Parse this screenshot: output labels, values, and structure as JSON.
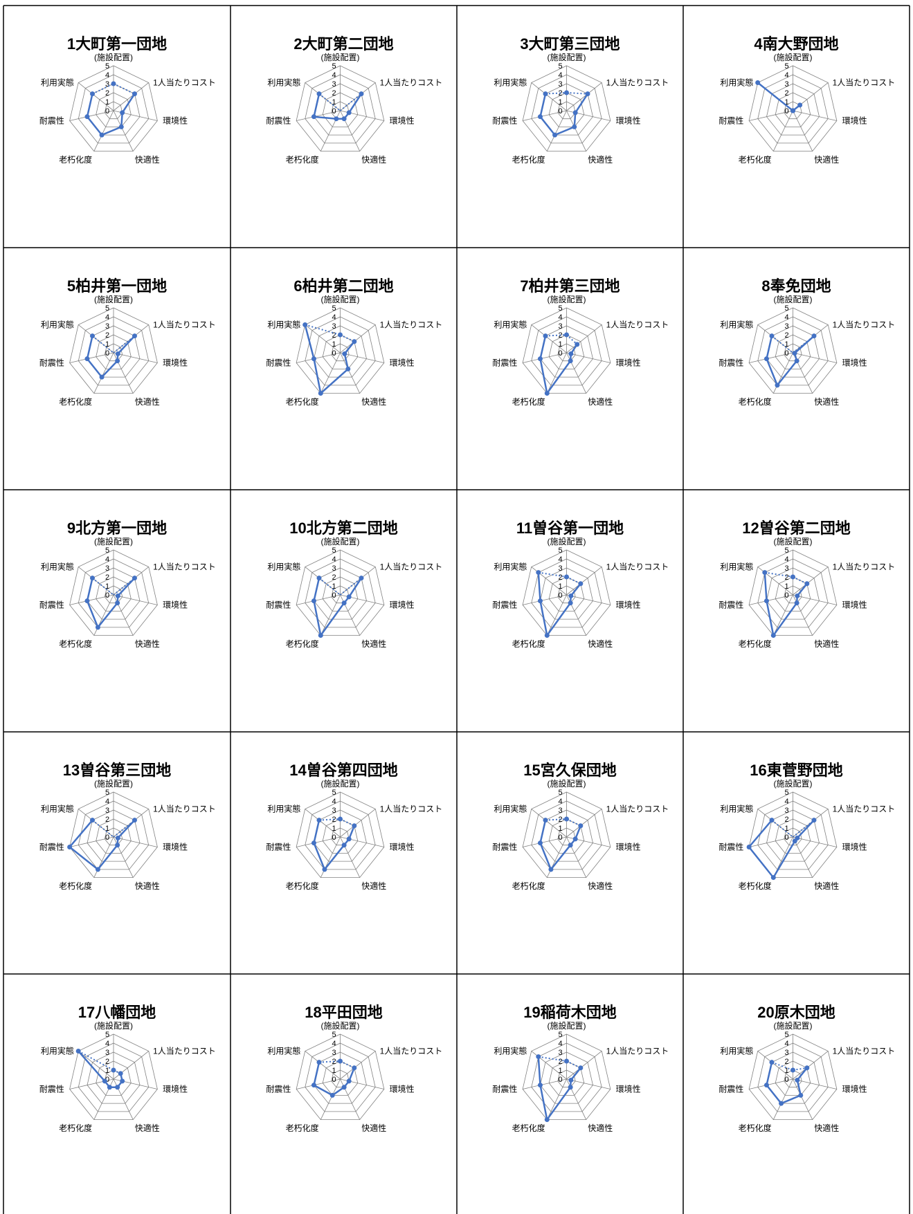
{
  "chart_data": [
    {
      "type": "radar",
      "title": "1大町第一団地",
      "axes": [
        "(施設配置)",
        "1人当たりコスト",
        "環境性",
        "快適性",
        "老朽化度",
        "耐震性",
        "利用実態"
      ],
      "ylim": [
        0,
        5
      ],
      "ticks": [
        0,
        1,
        2,
        3,
        4,
        5
      ],
      "series": [
        {
          "values": [
            3,
            3,
            1,
            2,
            3,
            3,
            3
          ]
        }
      ]
    },
    {
      "type": "radar",
      "title": "2大町第二団地",
      "axes": [
        "(施設配置)",
        "1人当たりコスト",
        "環境性",
        "快適性",
        "老朽化度",
        "耐震性",
        "利用実態"
      ],
      "ylim": [
        0,
        5
      ],
      "ticks": [
        0,
        1,
        2,
        3,
        4,
        5
      ],
      "series": [
        {
          "values": [
            0,
            3,
            1,
            1,
            1,
            3,
            3
          ]
        }
      ]
    },
    {
      "type": "radar",
      "title": "3大町第三団地",
      "axes": [
        "(施設配置)",
        "1人当たりコスト",
        "環境性",
        "快適性",
        "老朽化度",
        "耐震性",
        "利用実態"
      ],
      "ylim": [
        0,
        5
      ],
      "ticks": [
        0,
        1,
        2,
        3,
        4,
        5
      ],
      "series": [
        {
          "values": [
            2,
            3,
            1,
            2,
            3,
            3,
            3
          ]
        }
      ]
    },
    {
      "type": "radar",
      "title": "4南大野団地",
      "axes": [
        "(施設配置)",
        "1人当たりコスト",
        "環境性",
        "快適性",
        "老朽化度",
        "耐震性",
        "利用実態"
      ],
      "ylim": [
        0,
        5
      ],
      "ticks": [
        0,
        1,
        2,
        3,
        4,
        5
      ],
      "series": [
        {
          "values": [
            0,
            1,
            0,
            0,
            0,
            0,
            5
          ]
        }
      ]
    },
    {
      "type": "radar",
      "title": "5柏井第一団地",
      "axes": [
        "(施設配置)",
        "1人当たりコスト",
        "環境性",
        "快適性",
        "老朽化度",
        "耐震性",
        "利用実態"
      ],
      "ylim": [
        0,
        5
      ],
      "ticks": [
        0,
        1,
        2,
        3,
        4,
        5
      ],
      "series": [
        {
          "values": [
            0,
            3,
            0.5,
            1,
            3,
            3,
            3
          ]
        }
      ]
    },
    {
      "type": "radar",
      "title": "6柏井第二団地",
      "axes": [
        "(施設配置)",
        "1人当たりコスト",
        "環境性",
        "快適性",
        "老朽化度",
        "耐震性",
        "利用実態"
      ],
      "ylim": [
        0,
        5
      ],
      "ticks": [
        0,
        1,
        2,
        3,
        4,
        5
      ],
      "series": [
        {
          "values": [
            2,
            2,
            0.5,
            2,
            5,
            3,
            5
          ]
        }
      ]
    },
    {
      "type": "radar",
      "title": "7柏井第三団地",
      "axes": [
        "(施設配置)",
        "1人当たりコスト",
        "環境性",
        "快適性",
        "老朽化度",
        "耐震性",
        "利用実態"
      ],
      "ylim": [
        0,
        5
      ],
      "ticks": [
        0,
        1,
        2,
        3,
        4,
        5
      ],
      "series": [
        {
          "values": [
            2,
            1.5,
            0.5,
            1,
            5,
            3,
            3
          ]
        }
      ]
    },
    {
      "type": "radar",
      "title": "8奉免団地",
      "axes": [
        "(施設配置)",
        "1人当たりコスト",
        "環境性",
        "快適性",
        "老朽化度",
        "耐震性",
        "利用実態"
      ],
      "ylim": [
        0,
        5
      ],
      "ticks": [
        0,
        1,
        2,
        3,
        4,
        5
      ],
      "series": [
        {
          "values": [
            0,
            3,
            0.2,
            1,
            4,
            3,
            3
          ]
        }
      ]
    },
    {
      "type": "radar",
      "title": "9北方第一団地",
      "axes": [
        "(施設配置)",
        "1人当たりコスト",
        "環境性",
        "快適性",
        "老朽化度",
        "耐震性",
        "利用実態"
      ],
      "ylim": [
        0,
        5
      ],
      "ticks": [
        0,
        1,
        2,
        3,
        4,
        5
      ],
      "series": [
        {
          "values": [
            0,
            3,
            0.5,
            1,
            4,
            3,
            3
          ]
        }
      ]
    },
    {
      "type": "radar",
      "title": "10北方第二団地",
      "axes": [
        "(施設配置)",
        "1人当たりコスト",
        "環境性",
        "快適性",
        "老朽化度",
        "耐震性",
        "利用実態"
      ],
      "ylim": [
        0,
        5
      ],
      "ticks": [
        0,
        1,
        2,
        3,
        4,
        5
      ],
      "series": [
        {
          "values": [
            0,
            3,
            1,
            1,
            5,
            3,
            3
          ]
        }
      ]
    },
    {
      "type": "radar",
      "title": "11曽谷第一団地",
      "axes": [
        "(施設配置)",
        "1人当たりコスト",
        "環境性",
        "快適性",
        "老朽化度",
        "耐震性",
        "利用実態"
      ],
      "ylim": [
        0,
        5
      ],
      "ticks": [
        0,
        1,
        2,
        3,
        4,
        5
      ],
      "series": [
        {
          "values": [
            2,
            2,
            0.5,
            1,
            5,
            3,
            4
          ]
        }
      ]
    },
    {
      "type": "radar",
      "title": "12曽谷第二団地",
      "axes": [
        "(施設配置)",
        "1人当たりコスト",
        "環境性",
        "快適性",
        "老朽化度",
        "耐震性",
        "利用実態"
      ],
      "ylim": [
        0,
        5
      ],
      "ticks": [
        0,
        1,
        2,
        3,
        4,
        5
      ],
      "series": [
        {
          "values": [
            2,
            2,
            0.5,
            1,
            5,
            3,
            4
          ]
        }
      ]
    },
    {
      "type": "radar",
      "title": "13曽谷第三団地",
      "axes": [
        "(施設配置)",
        "1人当たりコスト",
        "環境性",
        "快適性",
        "老朽化度",
        "耐震性",
        "利用実態"
      ],
      "ylim": [
        0,
        5
      ],
      "ticks": [
        0,
        1,
        2,
        3,
        4,
        5
      ],
      "series": [
        {
          "values": [
            0,
            3,
            0.5,
            1,
            4,
            5,
            3
          ]
        }
      ]
    },
    {
      "type": "radar",
      "title": "14曽谷第四団地",
      "axes": [
        "(施設配置)",
        "1人当たりコスト",
        "環境性",
        "快適性",
        "老朽化度",
        "耐震性",
        "利用実態"
      ],
      "ylim": [
        0,
        5
      ],
      "ticks": [
        0,
        1,
        2,
        3,
        4,
        5
      ],
      "series": [
        {
          "values": [
            2,
            2,
            1,
            1,
            4,
            3,
            3
          ]
        }
      ]
    },
    {
      "type": "radar",
      "title": "15宮久保団地",
      "axes": [
        "(施設配置)",
        "1人当たりコスト",
        "環境性",
        "快適性",
        "老朽化度",
        "耐震性",
        "利用実態"
      ],
      "ylim": [
        0,
        5
      ],
      "ticks": [
        0,
        1,
        2,
        3,
        4,
        5
      ],
      "series": [
        {
          "values": [
            2,
            2,
            1,
            1,
            4,
            3,
            3
          ]
        }
      ]
    },
    {
      "type": "radar",
      "title": "16東菅野団地",
      "axes": [
        "(施設配置)",
        "1人当たりコスト",
        "環境性",
        "快適性",
        "老朽化度",
        "耐震性",
        "利用実態"
      ],
      "ylim": [
        0,
        5
      ],
      "ticks": [
        0,
        1,
        2,
        3,
        4,
        5
      ],
      "series": [
        {
          "values": [
            0,
            3,
            0.5,
            0.5,
            5,
            5,
            3
          ]
        }
      ]
    },
    {
      "type": "radar",
      "title": "17八幡団地",
      "axes": [
        "(施設配置)",
        "1人当たりコスト",
        "環境性",
        "快適性",
        "老朽化度",
        "耐震性",
        "利用実態"
      ],
      "ylim": [
        0,
        5
      ],
      "ticks": [
        0,
        1,
        2,
        3,
        4,
        5
      ],
      "series": [
        {
          "values": [
            1,
            1,
            1,
            1,
            1,
            1,
            5
          ]
        }
      ]
    },
    {
      "type": "radar",
      "title": "18平田団地",
      "axes": [
        "(施設配置)",
        "1人当たりコスト",
        "環境性",
        "快適性",
        "老朽化度",
        "耐震性",
        "利用実態"
      ],
      "ylim": [
        0,
        5
      ],
      "ticks": [
        0,
        1,
        2,
        3,
        4,
        5
      ],
      "series": [
        {
          "values": [
            2,
            2,
            1,
            1,
            2,
            3,
            3
          ]
        }
      ]
    },
    {
      "type": "radar",
      "title": "19稲荷木団地",
      "axes": [
        "(施設配置)",
        "1人当たりコスト",
        "環境性",
        "快適性",
        "老朽化度",
        "耐震性",
        "利用実態"
      ],
      "ylim": [
        0,
        5
      ],
      "ticks": [
        0,
        1,
        2,
        3,
        4,
        5
      ],
      "series": [
        {
          "values": [
            2,
            2,
            0.5,
            1,
            5,
            3,
            4
          ]
        }
      ]
    },
    {
      "type": "radar",
      "title": "20原木団地",
      "axes": [
        "(施設配置)",
        "1人当たりコスト",
        "環境性",
        "快適性",
        "老朽化度",
        "耐震性",
        "利用実態"
      ],
      "ylim": [
        0,
        5
      ],
      "ticks": [
        0,
        1,
        2,
        3,
        4,
        5
      ],
      "series": [
        {
          "values": [
            1,
            2,
            0.5,
            2,
            3,
            3,
            3
          ]
        }
      ]
    }
  ],
  "style": {
    "line_color": "#4472C4",
    "grid_color": "#808080",
    "border_color": "#000000",
    "text_color": "#000000"
  }
}
